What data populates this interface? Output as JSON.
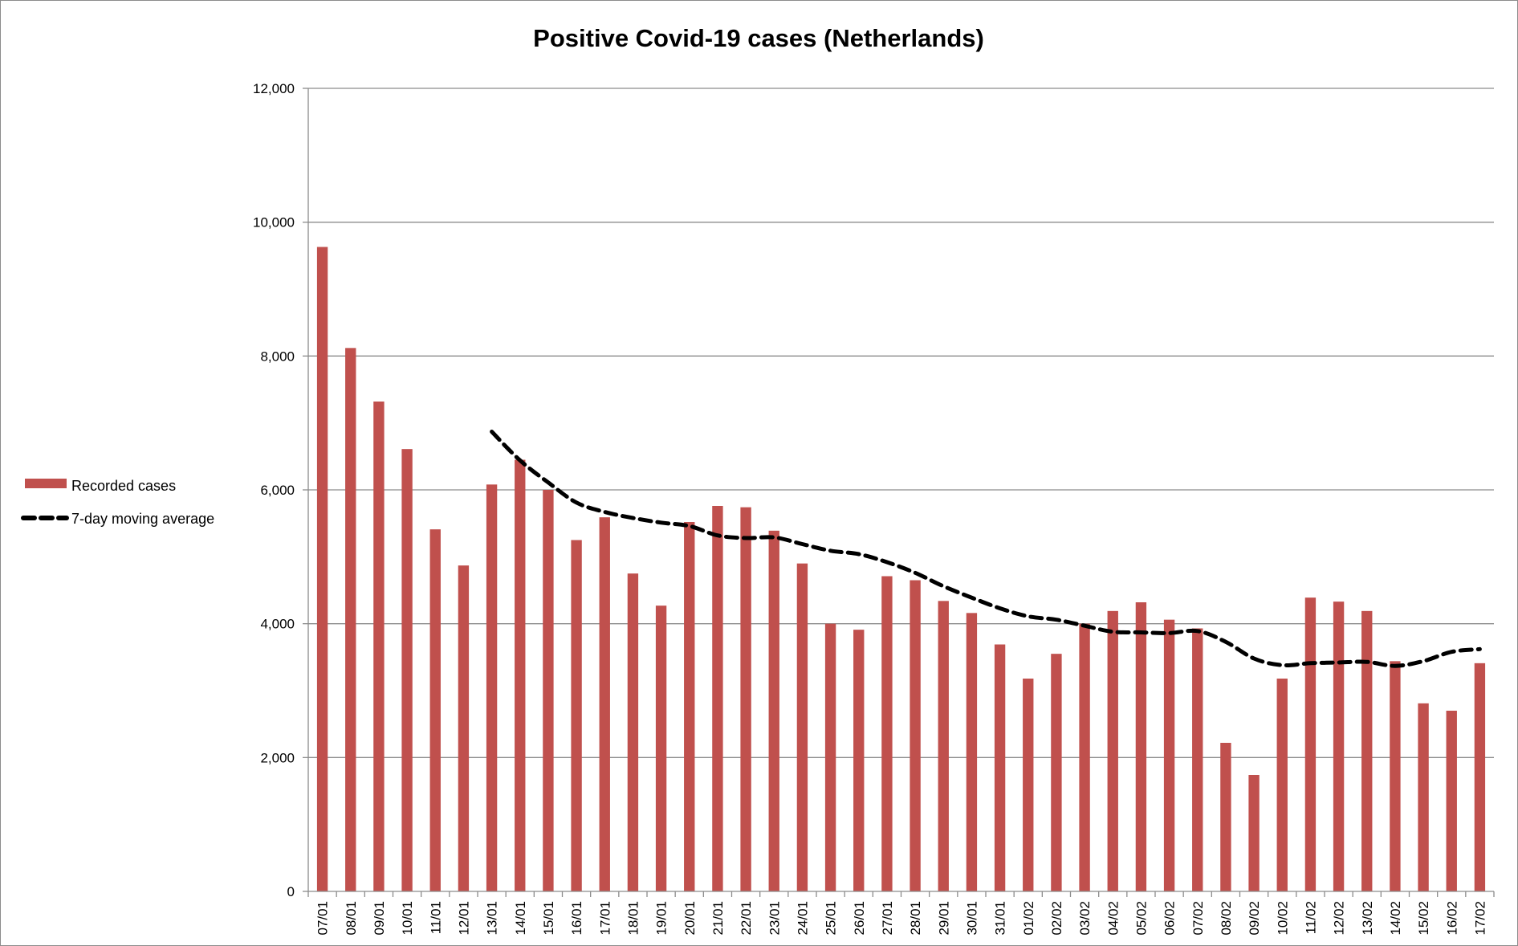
{
  "chart_data": {
    "type": "bar",
    "title": "Positive Covid-19 cases (Netherlands)",
    "xlabel": "",
    "ylabel": "",
    "ylim": [
      0,
      12000
    ],
    "yticks": [
      0,
      2000,
      4000,
      6000,
      8000,
      10000,
      12000
    ],
    "ytick_labels": [
      "0",
      "2,000",
      "4,000",
      "6,000",
      "8,000",
      "10,000",
      "12,000"
    ],
    "grid": true,
    "legend_position": "left",
    "categories": [
      "07/01",
      "08/01",
      "09/01",
      "10/01",
      "11/01",
      "12/01",
      "13/01",
      "14/01",
      "15/01",
      "16/01",
      "17/01",
      "18/01",
      "19/01",
      "20/01",
      "21/01",
      "22/01",
      "23/01",
      "24/01",
      "25/01",
      "26/01",
      "27/01",
      "28/01",
      "29/01",
      "30/01",
      "31/01",
      "01/02",
      "02/02",
      "03/02",
      "04/02",
      "05/02",
      "06/02",
      "07/02",
      "08/02",
      "09/02",
      "10/02",
      "11/02",
      "12/02",
      "13/02",
      "14/02",
      "15/02",
      "16/02",
      "17/02"
    ],
    "series": [
      {
        "name": "Recorded cases",
        "type": "bar",
        "color": "#c0504d",
        "values": [
          9630,
          8120,
          7320,
          6610,
          5410,
          4870,
          6080,
          6450,
          6000,
          5250,
          5590,
          4750,
          4270,
          5520,
          5760,
          5740,
          5390,
          4900,
          4000,
          3910,
          4710,
          4650,
          4340,
          4160,
          3690,
          3180,
          3550,
          4000,
          4190,
          4320,
          4060,
          3930,
          2220,
          1740,
          3180,
          4390,
          4330,
          4190,
          3440,
          2810,
          2700,
          3410
        ]
      },
      {
        "name": "7-day moving average",
        "type": "line",
        "style": "dashed",
        "color": "#000000",
        "values": [
          null,
          null,
          null,
          null,
          null,
          null,
          6870,
          6440,
          6110,
          5810,
          5670,
          5580,
          5510,
          5460,
          5320,
          5280,
          5290,
          5190,
          5090,
          5040,
          4920,
          4760,
          4560,
          4390,
          4230,
          4110,
          4060,
          3970,
          3880,
          3870,
          3860,
          3890,
          3730,
          3480,
          3380,
          3410,
          3420,
          3430,
          3370,
          3440,
          3580,
          3620
        ]
      }
    ]
  }
}
